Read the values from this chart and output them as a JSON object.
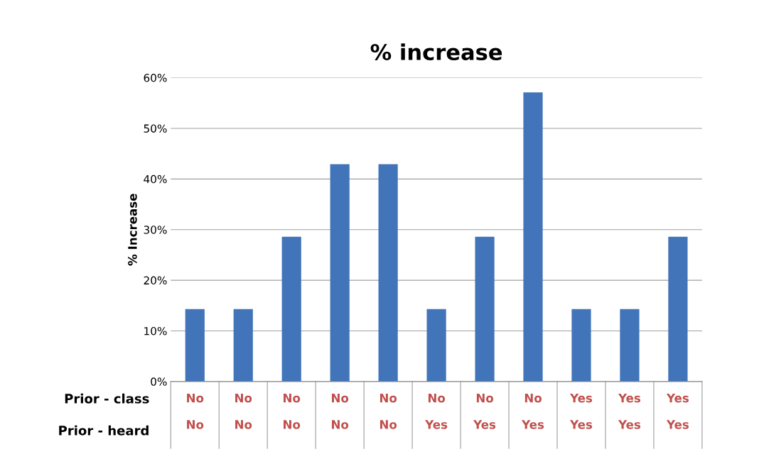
{
  "chart_data": {
    "type": "bar",
    "title": "% increase",
    "ylabel": "% Increase",
    "categories": [
      "No\n\nNo",
      "No\n\nNo",
      "No\n\nNo",
      "No\n\nNo",
      "No\n\nNo",
      "No\n\nYes",
      "No\n\nYes",
      "No\n\nYes",
      "Yes\n\nYes",
      "Yes\n\nYes",
      "Yes\n\nYes"
    ],
    "values": [
      14.3,
      14.3,
      28.6,
      42.9,
      42.9,
      14.3,
      28.6,
      57.1,
      14.3,
      14.3,
      28.6
    ],
    "color": "#4174b9",
    "ylim": [
      0,
      60
    ],
    "yticks": [
      {
        "value": 0,
        "label": "0%"
      },
      {
        "value": 10,
        "label": "10%"
      },
      {
        "value": 20,
        "label": "20%"
      },
      {
        "value": 30,
        "label": "30%"
      },
      {
        "value": 40,
        "label": "40%"
      },
      {
        "value": 50,
        "label": "50%"
      },
      {
        "value": 60,
        "label": "60%"
      }
    ],
    "grid": "y",
    "annotations": [
      "Prior - class",
      "Prior - heard"
    ]
  }
}
